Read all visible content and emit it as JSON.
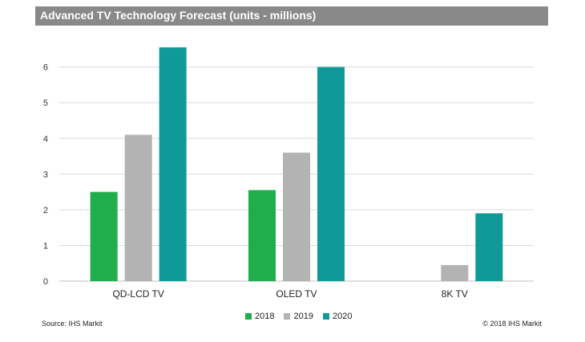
{
  "header": {
    "title": "Advanced TV Technology Forecast (units - millions)"
  },
  "footer": {
    "source": "Source: IHS Markit",
    "copyright": "© 2018 IHS Markit"
  },
  "colors": {
    "title_bg": "#898989",
    "s2018": "#1fae4b",
    "s2019": "#b3b3b3",
    "s2020": "#0f9a98",
    "grid": "#d9d9d9"
  },
  "chart_data": {
    "type": "bar",
    "title": "Advanced TV Technology Forecast (units - millions)",
    "categories": [
      "QD-LCD TV",
      "OLED TV",
      "8K TV"
    ],
    "series": [
      {
        "name": "2018",
        "values": [
          2.5,
          2.55,
          0
        ]
      },
      {
        "name": "2019",
        "values": [
          4.1,
          3.6,
          0.45
        ]
      },
      {
        "name": "2020",
        "values": [
          6.55,
          6.0,
          1.9
        ]
      }
    ],
    "ylim": [
      0,
      6.8
    ],
    "yticks": [
      "0",
      "1",
      "2",
      "3",
      "4",
      "5",
      "6"
    ],
    "grid": true,
    "legend": "bottom-center"
  }
}
